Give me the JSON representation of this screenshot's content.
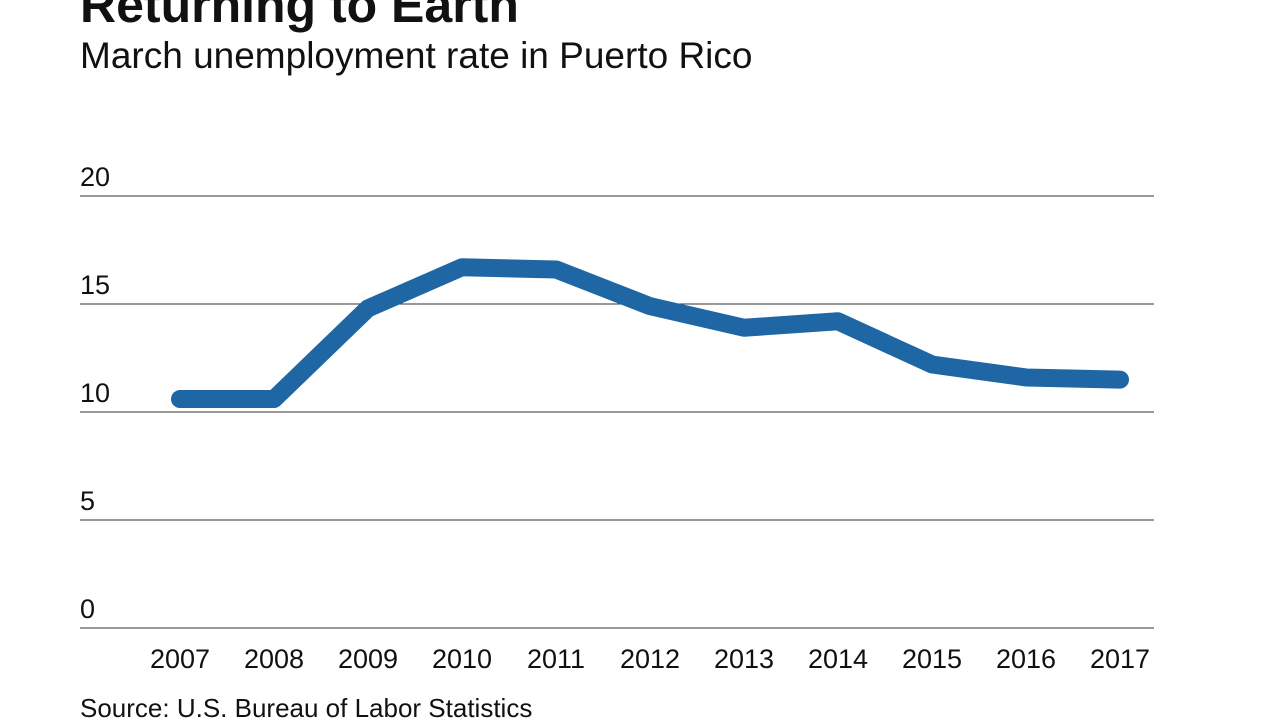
{
  "chart_data": {
    "type": "line",
    "title": "Returning to Earth",
    "subtitle": "March unemployment rate in Puerto Rico",
    "source": "Source: U.S. Bureau of Labor Statistics",
    "categories": [
      "2007",
      "2008",
      "2009",
      "2010",
      "2011",
      "2012",
      "2013",
      "2014",
      "2015",
      "2016",
      "2017"
    ],
    "values": [
      10.6,
      10.6,
      14.8,
      16.7,
      16.6,
      14.9,
      13.9,
      14.2,
      12.2,
      11.6,
      11.5
    ],
    "color": "#1f67a4",
    "ylim": [
      0,
      20
    ],
    "yticks": [
      0,
      5,
      10,
      15,
      20
    ],
    "grid": true
  }
}
